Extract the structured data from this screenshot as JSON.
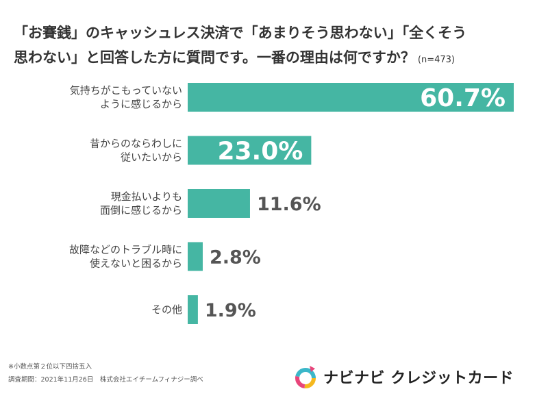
{
  "title_line1": "「お賽銭」のキャッシュレス決済で「あまりそう思わない」「全くそう",
  "title_line2": "思わない」と回答した方に質問です。一番の理由は何ですか？",
  "sample_size": "(n=473)",
  "colors": {
    "bar": "#45b6a3",
    "value_text_outside": "#555555",
    "value_text_inside": "#ffffff"
  },
  "chart_data": {
    "type": "bar",
    "orientation": "horizontal",
    "title": "「お賽銭」のキャッシュレス決済で「あまりそう思わない」「全くそう思わない」と回答した方に質問です。一番の理由は何ですか？",
    "categories": [
      [
        "気持ちがこもっていない",
        "ように感じるから"
      ],
      [
        "昔からのならわしに",
        "従いたいから"
      ],
      [
        "現金払いよりも",
        "面倒に感じるから"
      ],
      [
        "故障などのトラブル時に",
        "使えないと困るから"
      ],
      [
        "その他"
      ]
    ],
    "values": [
      60.7,
      23.0,
      11.6,
      2.8,
      1.9
    ],
    "value_labels": [
      "60.7%",
      "23.0%",
      "11.6%",
      "2.8%",
      "1.9%"
    ],
    "unit": "%",
    "xlim": [
      0,
      60.7
    ],
    "grid": false
  },
  "footnote_1": "※小数点第２位以下四捨五入",
  "footnote_2": "調査期間：2021年11月26日　株式会社エイチームフィナジー調べ",
  "logo_text": "ナビナビ クレジットカード"
}
